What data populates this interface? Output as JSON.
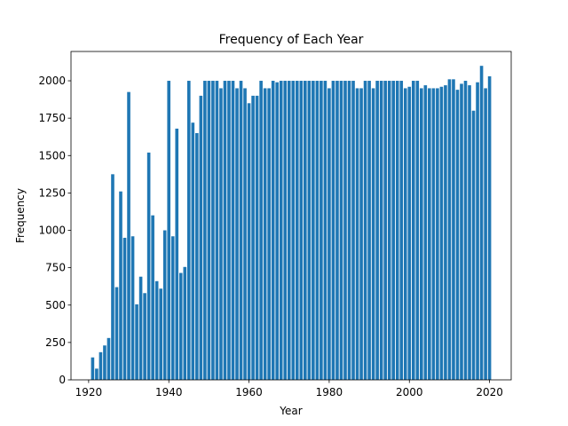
{
  "chart_data": {
    "type": "bar",
    "title": "Frequency of Each Year",
    "xlabel": "Year",
    "ylabel": "Frequency",
    "color": "#1f77b4",
    "x": [
      1921,
      1922,
      1923,
      1924,
      1925,
      1926,
      1927,
      1928,
      1929,
      1930,
      1931,
      1932,
      1933,
      1934,
      1935,
      1936,
      1937,
      1938,
      1939,
      1940,
      1941,
      1942,
      1943,
      1944,
      1945,
      1946,
      1947,
      1948,
      1949,
      1950,
      1951,
      1952,
      1953,
      1954,
      1955,
      1956,
      1957,
      1958,
      1959,
      1960,
      1961,
      1962,
      1963,
      1964,
      1965,
      1966,
      1967,
      1968,
      1969,
      1970,
      1971,
      1972,
      1973,
      1974,
      1975,
      1976,
      1977,
      1978,
      1979,
      1980,
      1981,
      1982,
      1983,
      1984,
      1985,
      1986,
      1987,
      1988,
      1989,
      1990,
      1991,
      1992,
      1993,
      1994,
      1995,
      1996,
      1997,
      1998,
      1999,
      2000,
      2001,
      2002,
      2003,
      2004,
      2005,
      2006,
      2007,
      2008,
      2009,
      2010,
      2011,
      2012,
      2013,
      2014,
      2015,
      2016,
      2017,
      2018,
      2019,
      2020
    ],
    "values": [
      150,
      75,
      185,
      230,
      280,
      1375,
      620,
      1260,
      950,
      1925,
      960,
      505,
      690,
      580,
      1520,
      1100,
      660,
      610,
      1000,
      2000,
      960,
      1680,
      715,
      755,
      2000,
      1720,
      1650,
      1900,
      2000,
      2000,
      2000,
      2000,
      1950,
      2000,
      2000,
      2000,
      1950,
      2000,
      1950,
      1850,
      1900,
      1900,
      2000,
      1950,
      1950,
      2000,
      1990,
      2000,
      2000,
      2000,
      2000,
      2000,
      2000,
      2000,
      2000,
      2000,
      2000,
      2000,
      2000,
      1950,
      2000,
      2000,
      2000,
      2000,
      2000,
      2000,
      1950,
      1950,
      2000,
      2000,
      1950,
      2000,
      2000,
      2000,
      2000,
      2000,
      2000,
      2000,
      1950,
      1960,
      2000,
      2000,
      1950,
      1970,
      1950,
      1950,
      1950,
      1960,
      1970,
      2010,
      2010,
      1940,
      1980,
      2000,
      1970,
      1800,
      1990,
      2100,
      1950,
      2030
    ],
    "xlim": [
      1915.6,
      2025.4
    ],
    "xticks": [
      1920,
      1940,
      1960,
      1980,
      2000,
      2020
    ],
    "ylim": [
      0,
      2196
    ],
    "yticks": [
      0,
      250,
      500,
      750,
      1000,
      1250,
      1500,
      1750,
      2000
    ]
  }
}
